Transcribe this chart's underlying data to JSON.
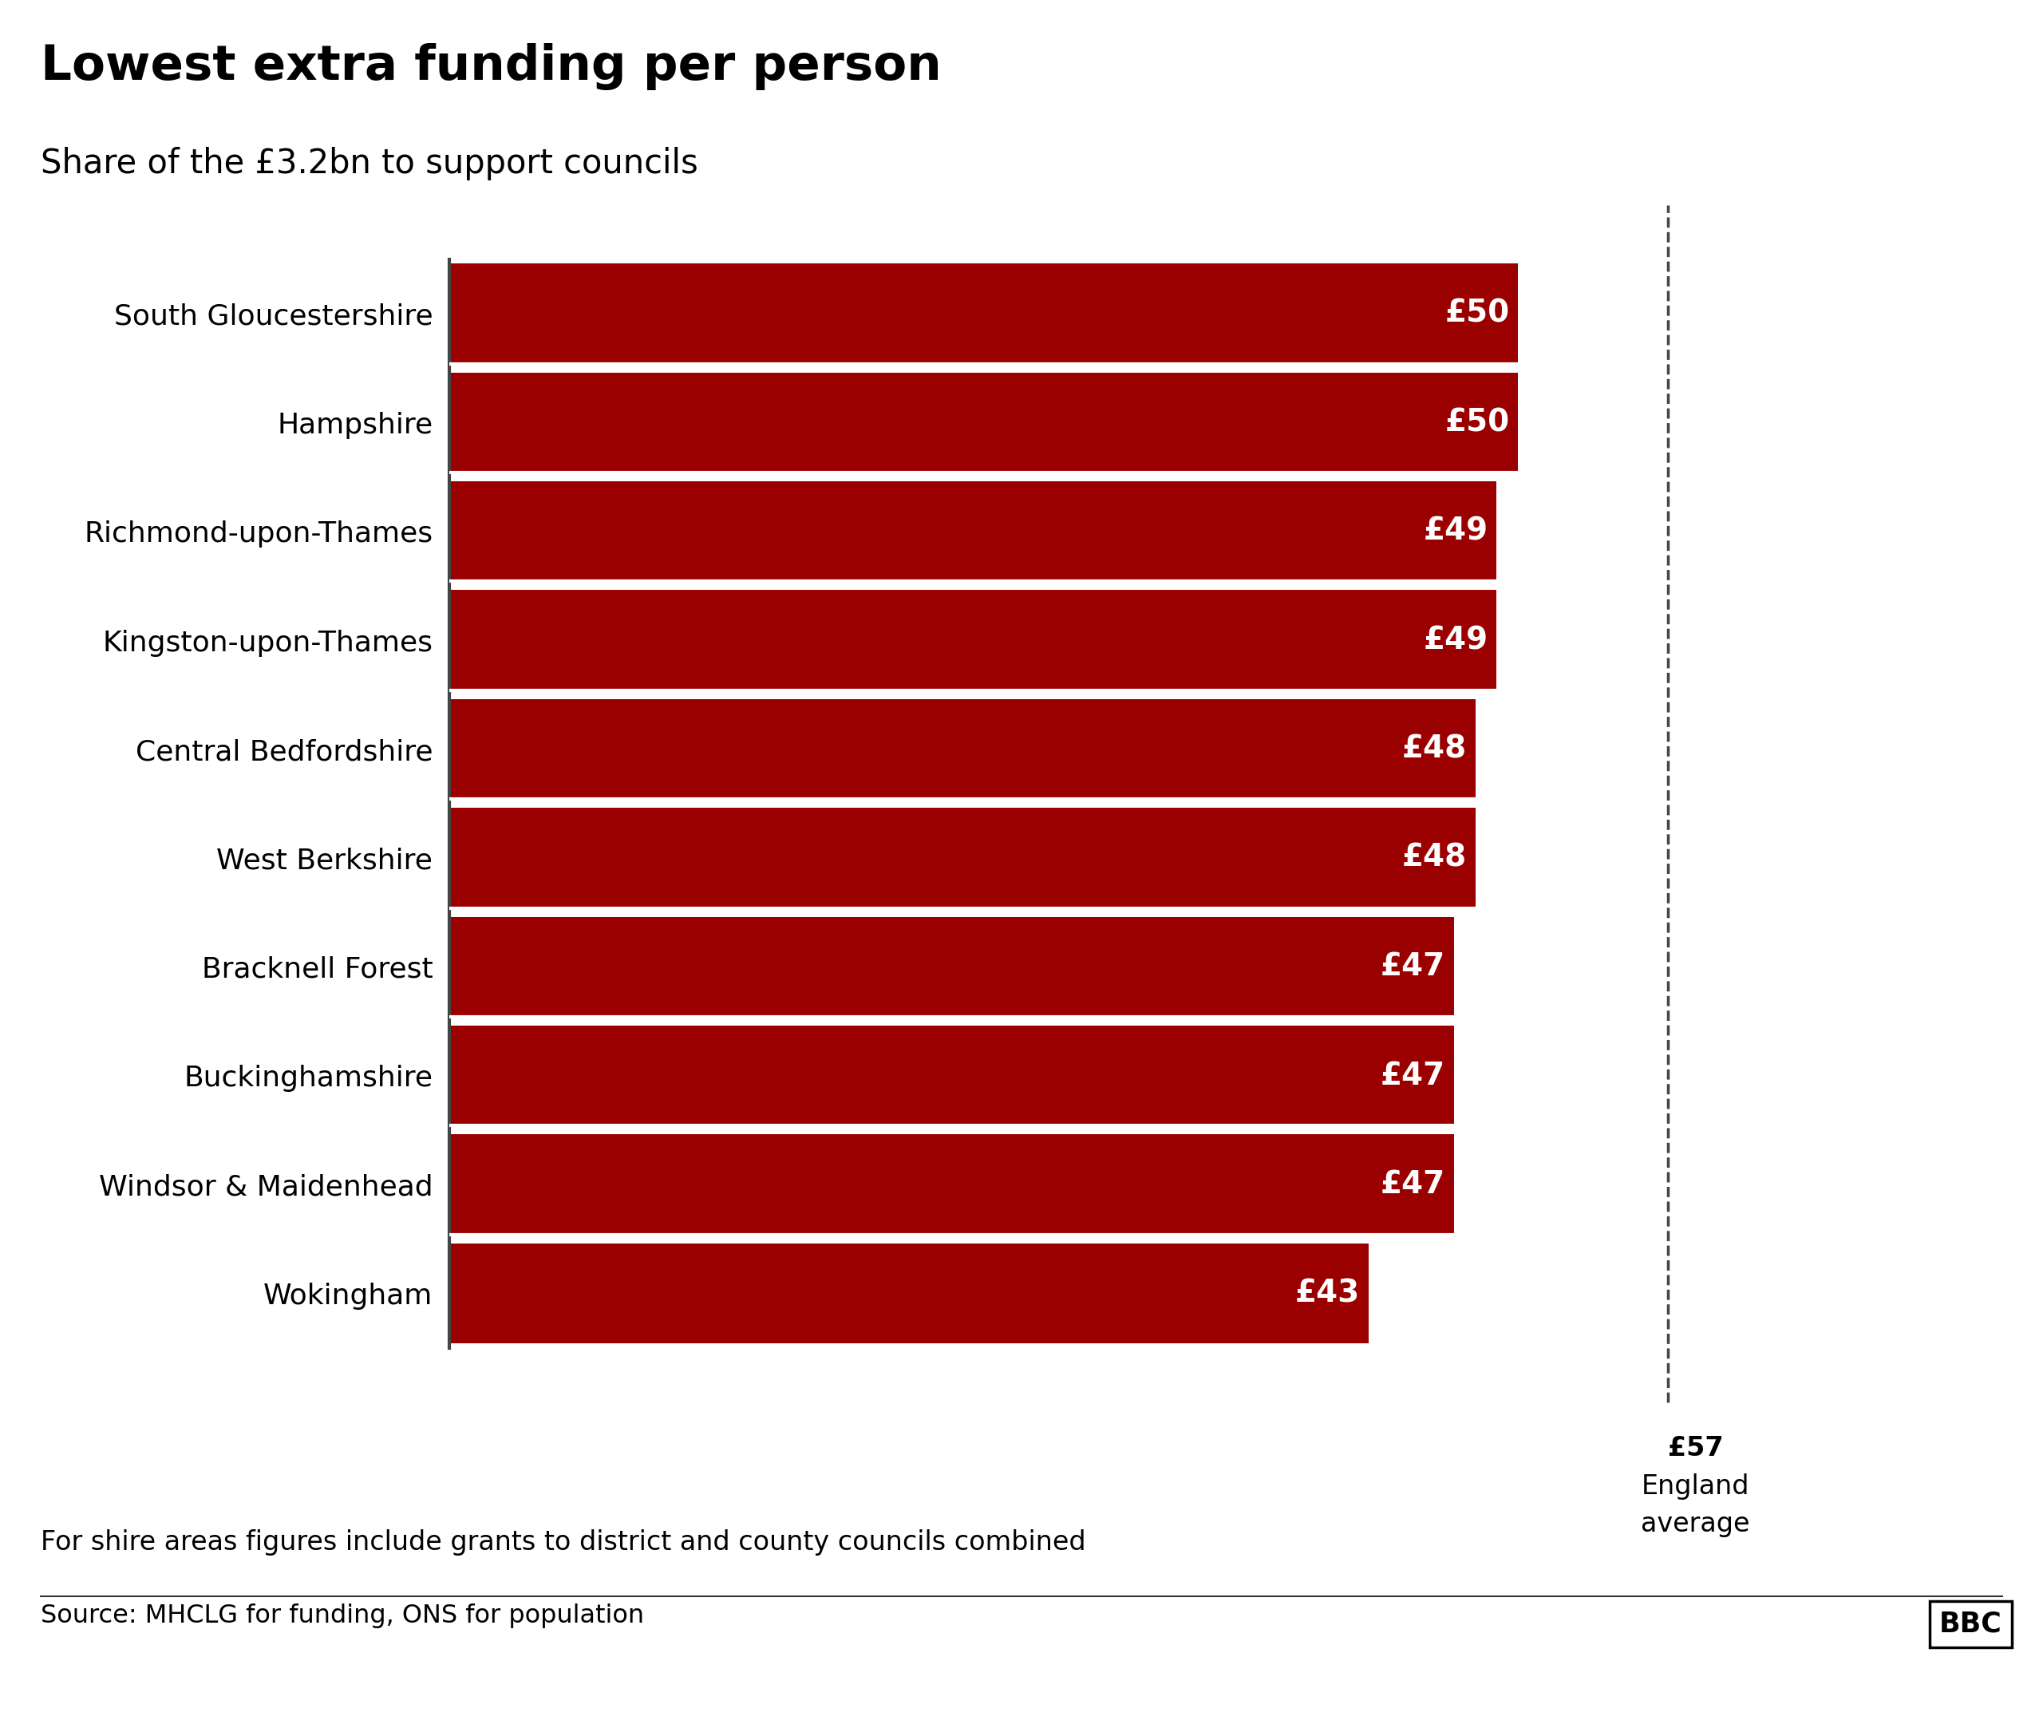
{
  "title": "Lowest extra funding per person",
  "subtitle": "Share of the £3.2bn to support councils",
  "categories": [
    "South Gloucestershire",
    "Hampshire",
    "Richmond-upon-Thames",
    "Kingston-upon-Thames",
    "Central Bedfordshire",
    "West Berkshire",
    "Bracknell Forest",
    "Buckinghamshire",
    "Windsor & Maidenhead",
    "Wokingham"
  ],
  "values": [
    50,
    50,
    49,
    49,
    48,
    48,
    47,
    47,
    47,
    43
  ],
  "bar_color": "#9b0000",
  "background_color": "#ffffff",
  "text_color": "#000000",
  "label_color": "#ffffff",
  "avg_value": 57,
  "avg_line1": "£57",
  "avg_line2": "England",
  "avg_line3": "average",
  "footnote": "For shire areas figures include grants to district and county councils combined",
  "source": "Source: MHCLG for funding, ONS for population",
  "bbc_logo": "BBC",
  "xlim_max": 65,
  "title_fontsize": 44,
  "subtitle_fontsize": 30,
  "tick_fontsize": 26,
  "label_fontsize": 28,
  "footnote_fontsize": 24,
  "source_fontsize": 23,
  "avg_fontsize": 24
}
